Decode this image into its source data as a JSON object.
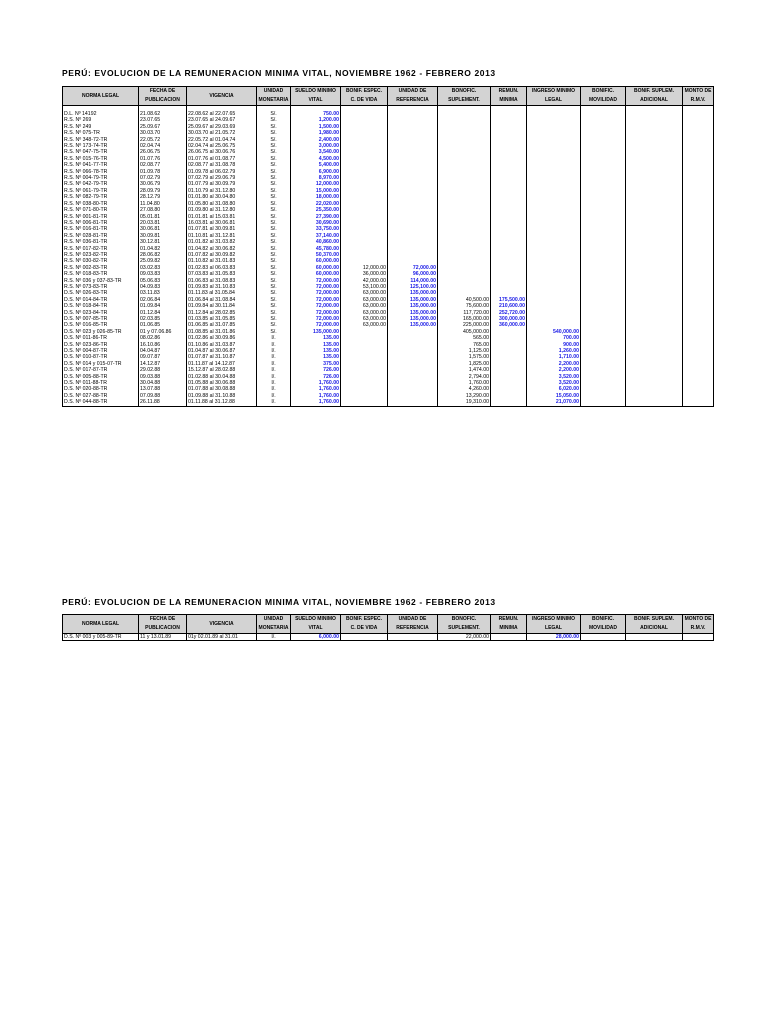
{
  "title": "PERÚ: EVOLUCION DE LA REMUNERACION MINIMA VITAL, NOVIEMBRE 1962 - FEBRERO 2013",
  "headers": [
    [
      "NORMA LEGAL"
    ],
    [
      "FECHA DE",
      "PUBLICACION"
    ],
    [
      "VIGENCIA"
    ],
    [
      "UNIDAD",
      "MONETARIA"
    ],
    [
      "SUELDO MINIMO",
      "VITAL"
    ],
    [
      "BONIF. ESPEC.",
      "C. DE VIDA"
    ],
    [
      "UNIDAD DE",
      "REFERENCIA"
    ],
    [
      "BONOFIC.",
      "SUPLEMENT."
    ],
    [
      "REMUN.",
      "MINIMA"
    ],
    [
      "INGRESO MINIMO",
      "LEGAL"
    ],
    [
      "BONIFIC.",
      "MOVILIDAD"
    ],
    [
      "BONIF. SUPLEM.",
      "ADICIONAL"
    ],
    [
      "MONTO DE",
      "R.M.V."
    ]
  ],
  "table1_rows": [
    [
      "D.L. Nº 14192",
      "21.08.62",
      "22.08.62 al 22.07.65",
      "S/.",
      "750.00",
      "",
      "",
      "",
      "",
      "",
      "",
      "",
      ""
    ],
    [
      "R.S. Nº 269",
      "23.07.65",
      "23.07.65 al 24.09.67",
      "S/.",
      "1,200.00",
      "",
      "",
      "",
      "",
      "",
      "",
      "",
      ""
    ],
    [
      "R.S. Nº 249",
      "25.09.67",
      "25.09.67 al 29.03.69",
      "S/.",
      "1,500.00",
      "",
      "",
      "",
      "",
      "",
      "",
      "",
      ""
    ],
    [
      "R.S. Nº 075-TR",
      "30.03.70",
      "30.03.70 al 21.05.72",
      "S/.",
      "1,980.00",
      "",
      "",
      "",
      "",
      "",
      "",
      "",
      ""
    ],
    [
      "R.S. Nº 348-72-TR",
      "22.05.72",
      "22.05.72 al 01.04.74",
      "S/.",
      "2,400.00",
      "",
      "",
      "",
      "",
      "",
      "",
      "",
      ""
    ],
    [
      "R.S. Nº 173-74-TR",
      "02.04.74",
      "02.04.74 al 25.06.75",
      "S/.",
      "3,000.00",
      "",
      "",
      "",
      "",
      "",
      "",
      "",
      ""
    ],
    [
      "R.S. Nº 047-75-TR",
      "26.06.75",
      "26.06.75 al 30.06.76",
      "S/.",
      "3,540.00",
      "",
      "",
      "",
      "",
      "",
      "",
      "",
      ""
    ],
    [
      "R.S. Nº 015-76-TR",
      "01.07.76",
      "01.07.76 al 01.08.77",
      "S/.",
      "4,500.00",
      "",
      "",
      "",
      "",
      "",
      "",
      "",
      ""
    ],
    [
      "R.S. Nº 041-77-TR",
      "02.08.77",
      "02.08.77 al 31.08.78",
      "S/.",
      "5,400.00",
      "",
      "",
      "",
      "",
      "",
      "",
      "",
      ""
    ],
    [
      "R.S. Nº 066-78-TR",
      "01.09.78",
      "01.09.78 al 06.02.79",
      "S/.",
      "6,900.00",
      "",
      "",
      "",
      "",
      "",
      "",
      "",
      ""
    ],
    [
      "R.S. Nº 004-79-TR",
      "07.02.79",
      "07.02.79 al 29.06.79",
      "S/.",
      "8,970.00",
      "",
      "",
      "",
      "",
      "",
      "",
      "",
      ""
    ],
    [
      "R.S. Nº 042-79-TR",
      "30.06.79",
      "01.07.79 al 30.09.79",
      "S/.",
      "12,000.00",
      "",
      "",
      "",
      "",
      "",
      "",
      "",
      ""
    ],
    [
      "R.S. Nº 061-79-TR",
      "28.09.79",
      "01.10.79 al 31.12.80",
      "S/.",
      "15,000.00",
      "",
      "",
      "",
      "",
      "",
      "",
      "",
      ""
    ],
    [
      "R.S. Nº 082-79-TR",
      "28.12.79",
      "01.01.80 al 30.04.80",
      "S/.",
      "18,000.00",
      "",
      "",
      "",
      "",
      "",
      "",
      "",
      ""
    ],
    [
      "R.S. Nº 038-80-TR",
      "11.04.80",
      "01.05.80 al 31.08.80",
      "S/.",
      "22,020.00",
      "",
      "",
      "",
      "",
      "",
      "",
      "",
      ""
    ],
    [
      "R.S. Nº 071-80-TR",
      "27.08.80",
      "01.09.80 al 31.12.80",
      "S/.",
      "25,350.00",
      "",
      "",
      "",
      "",
      "",
      "",
      "",
      ""
    ],
    [
      "R.S. Nº 001-81-TR",
      "05.01.81",
      "01.01.81 al 15.03.81",
      "S/.",
      "27,390.00",
      "",
      "",
      "",
      "",
      "",
      "",
      "",
      ""
    ],
    [
      "R.S. Nº 006-81-TR",
      "20.03.81",
      "16.03.81 al 30.06.81",
      "S/.",
      "30,690.00",
      "",
      "",
      "",
      "",
      "",
      "",
      "",
      ""
    ],
    [
      "R.S. Nº 016-81-TR",
      "30.06.81",
      "01.07.81 al 30.09.81",
      "S/.",
      "33,750.00",
      "",
      "",
      "",
      "",
      "",
      "",
      "",
      ""
    ],
    [
      "R.S. Nº 028-81-TR",
      "30.09.81",
      "01.10.81 al 31.12.81",
      "S/.",
      "37,140.00",
      "",
      "",
      "",
      "",
      "",
      "",
      "",
      ""
    ],
    [
      "R.S. Nº 036-81-TR",
      "30.12.81",
      "01.01.82 al 31.03.82",
      "S/.",
      "40,860.00",
      "",
      "",
      "",
      "",
      "",
      "",
      "",
      ""
    ],
    [
      "R.S. Nº 017-82-TR",
      "01.04.82",
      "01.04.82 al 30.06.82",
      "S/.",
      "45,780.00",
      "",
      "",
      "",
      "",
      "",
      "",
      "",
      ""
    ],
    [
      "R.S. Nº 023-82-TR",
      "28.06.82",
      "01.07.82 al 30.09.82",
      "S/.",
      "50,370.00",
      "",
      "",
      "",
      "",
      "",
      "",
      "",
      ""
    ],
    [
      "R.S. Nº 030-82-TR",
      "25.09.82",
      "01.10.82 al 31.01.83",
      "S/.",
      "60,000.00",
      "",
      "",
      "",
      "",
      "",
      "",
      "",
      ""
    ],
    [
      "R.S. Nº 002-83-TR",
      "03.02.83",
      "01.02.83 al 06.03.83",
      "S/.",
      "60,000.00",
      "12,000.00",
      "72,000.00",
      "",
      "",
      "",
      "",
      "",
      ""
    ],
    [
      "R.S. Nº 018-83-TR",
      "09.03.83",
      "07.03.83 al 31.05.83",
      "S/.",
      "60,000.00",
      "36,000.00",
      "96,000.00",
      "",
      "",
      "",
      "",
      "",
      ""
    ],
    [
      "R.S. Nº 036 y 037-83-TR",
      "05.06.83",
      "01.06.83 al 31.08.83",
      "S/.",
      "72,000.00",
      "42,000.00",
      "114,000.00",
      "",
      "",
      "",
      "",
      "",
      ""
    ],
    [
      "R.S. Nº 073-83-TR",
      "04.09.83",
      "01.09.83 al 31.10.83",
      "S/.",
      "72,000.00",
      "53,100.00",
      "125,100.00",
      "",
      "",
      "",
      "",
      "",
      ""
    ],
    [
      "D.S. Nº 026-83-TR",
      "03.11.83",
      "01.11.83 al 31.05.84",
      "S/.",
      "72,000.00",
      "63,000.00",
      "135,000.00",
      "",
      "",
      "",
      "",
      "",
      ""
    ],
    [
      "D.S. Nº 014-84-TR",
      "02.06.84",
      "01.06.84 al 31.08.84",
      "S/.",
      "72,000.00",
      "63,000.00",
      "135,000.00",
      "40,500.00",
      "175,500.00",
      "",
      "",
      "",
      ""
    ],
    [
      "D.S. Nº 018-84-TR",
      "01.09.84",
      "01.09.84 al 30.11.84",
      "S/.",
      "72,000.00",
      "63,000.00",
      "135,000.00",
      "75,600.00",
      "210,600.00",
      "",
      "",
      "",
      ""
    ],
    [
      "D.S. Nº 023-84-TR",
      "01.12.84",
      "01.12.84 al 28.02.85",
      "S/.",
      "72,000.00",
      "63,000.00",
      "135,000.00",
      "117,720.00",
      "252,720.00",
      "",
      "",
      "",
      ""
    ],
    [
      "D.S. Nº 007-85-TR",
      "02.03.85",
      "01.03.85 al 31.05.85",
      "S/.",
      "72,000.00",
      "63,000.00",
      "135,000.00",
      "165,000.00",
      "300,000.00",
      "",
      "",
      "",
      ""
    ],
    [
      "D.S. Nº 016-85-TR",
      "01.06.85",
      "01.06.85 al 31.07.85",
      "S/.",
      "72,000.00",
      "63,000.00",
      "135,000.00",
      "225,000.00",
      "360,000.00",
      "",
      "",
      "",
      ""
    ],
    [
      "D.S. Nº 023 y 026-85-TR",
      "01 y 07.06.86",
      "01.08.85 al 31.01.86",
      "S/.",
      "135,000.00",
      "",
      "",
      "405,000.00",
      "",
      "540,000.00",
      "",
      "",
      ""
    ],
    [
      "D.S. Nº 011-86-TR",
      "08.02.86",
      "01.02.86 al 30.09.86",
      "I/.",
      "135.00",
      "",
      "",
      "565.00",
      "",
      "700.00",
      "",
      "",
      ""
    ],
    [
      "D.S. Nº 023-86-TR",
      "16.10.86",
      "01.10.86 al 31.03.87",
      "I/.",
      "135.00",
      "",
      "",
      "765.00",
      "",
      "900.00",
      "",
      "",
      ""
    ],
    [
      "D.S. Nº 004-87-TR",
      "04.04.87",
      "01.04.87 al 30.06.87",
      "I/.",
      "135.00",
      "",
      "",
      "1,125.00",
      "",
      "1,260.00",
      "",
      "",
      ""
    ],
    [
      "D.S. Nº 010-87-TR",
      "09.07.87",
      "01.07.87 al 31.10.87",
      "I/.",
      "135.00",
      "",
      "",
      "1,575.00",
      "",
      "1,710.00",
      "",
      "",
      ""
    ],
    [
      "D.S. Nº 014 y 015-07-TR",
      "14.12.87",
      "01.11.87 al 14.12.87",
      "I/.",
      "375.00",
      "",
      "",
      "1,825.00",
      "",
      "2,200.00",
      "",
      "",
      ""
    ],
    [
      "D.S. Nº 017-87-TR",
      "29.02.88",
      "15.12.87 al 28.02.88",
      "I/.",
      "726.00",
      "",
      "",
      "1,474.00",
      "",
      "2,200.00",
      "",
      "",
      ""
    ],
    [
      "D.S. Nº 005-88-TR",
      "09.03.88",
      "01.02.88 al 30.04.88",
      "I/.",
      "726.00",
      "",
      "",
      "2,794.00",
      "",
      "3,520.00",
      "",
      "",
      ""
    ],
    [
      "D.S. Nº 011-88-TR",
      "30.04.88",
      "01.05.88 al 30.06.88",
      "I/.",
      "1,760.00",
      "",
      "",
      "1,760.00",
      "",
      "3,520.00",
      "",
      "",
      ""
    ],
    [
      "D.S. Nº 020-88-TR",
      "13.07.88",
      "01.07.88 al 30.08.88",
      "I/.",
      "1,760.00",
      "",
      "",
      "4,260.00",
      "",
      "6,020.00",
      "",
      "",
      ""
    ],
    [
      "D.S. Nº 027-88-TR",
      "07.09.88",
      "01.09.88 al 31.10.88",
      "I/.",
      "1,760.00",
      "",
      "",
      "13,290.00",
      "",
      "15,050.00",
      "",
      "",
      ""
    ],
    [
      "D.S. Nº 044-88-TR",
      "26.11.88",
      "01.11.88 al 31.12.88",
      "I/.",
      "1,760.00",
      "",
      "",
      "19,310.00",
      "",
      "21,070.00",
      "",
      "",
      ""
    ]
  ],
  "table2_rows": [
    [
      "D.S. Nº 003 y 005-89-TR",
      "11  y  13.01.89",
      "01y 02.01.89 al 31.01",
      "I/.",
      "6,000.00",
      "",
      "",
      "22,000.00",
      "",
      "28,000.00",
      "",
      "",
      ""
    ]
  ],
  "highlight_columns": [
    4,
    6,
    8,
    9
  ],
  "colors": {
    "header_bg": "#d3d3d3",
    "highlight_text": "#1a1ae6"
  }
}
